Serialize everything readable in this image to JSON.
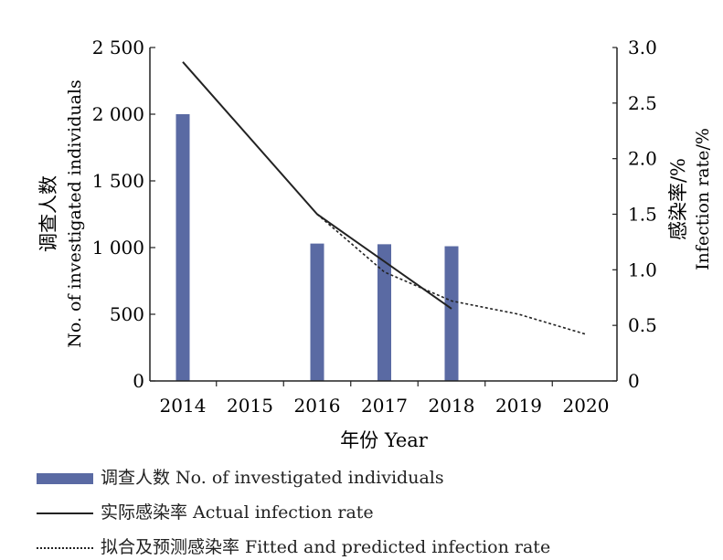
{
  "chart_data": {
    "type": "bar+line",
    "x_label": "年份 Year",
    "categories": [
      "2014",
      "2015",
      "2016",
      "2017",
      "2018",
      "2019",
      "2020"
    ],
    "left_axis": {
      "label_cn": "调查人数",
      "label_en": "No. of investigated individuals",
      "range": [
        0,
        2500
      ],
      "ticks": [
        "0",
        "500",
        "1 000",
        "1 500",
        "2 000",
        "2 500"
      ]
    },
    "right_axis": {
      "label_cn": "感染率/%",
      "label_en": "Infection rate/%",
      "range": [
        0,
        3.0
      ],
      "ticks": [
        "0",
        "0.5",
        "1.0",
        "1.5",
        "2.0",
        "2.5",
        "3.0"
      ]
    },
    "bars": {
      "name": "调查人数 No. of investigated individuals",
      "color": "#5a6aa3",
      "values": [
        2000,
        null,
        1030,
        1025,
        1010,
        null,
        null
      ]
    },
    "actual_line": {
      "name": "实际感染率 Actual infection rate",
      "points": [
        [
          2014,
          2.87
        ],
        [
          2016,
          1.5
        ],
        [
          2018,
          0.65
        ]
      ]
    },
    "fitted_line": {
      "name": "拟合及预测感染率 Fitted and predicted infection rate",
      "points": [
        [
          2016,
          1.5
        ],
        [
          2017,
          0.98
        ],
        [
          2018,
          0.72
        ],
        [
          2019,
          0.6
        ],
        [
          2020,
          0.42
        ]
      ]
    }
  },
  "legend": {
    "bar": "调查人数 No. of investigated individuals",
    "actual": "实际感染率 Actual infection rate",
    "fitted": "拟合及预测感染率 Fitted and predicted infection rate"
  }
}
